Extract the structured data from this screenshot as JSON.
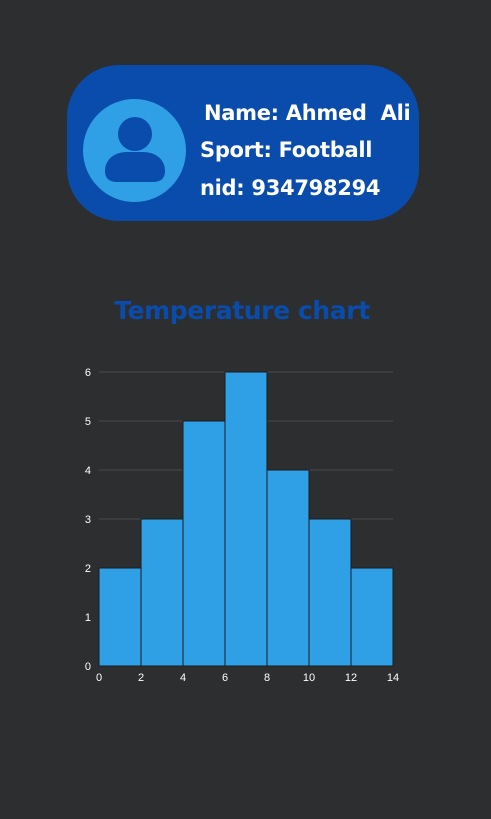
{
  "profile": {
    "name_line": "Name: Ahmed  Ali",
    "sport_line": "Sport: Football",
    "nid_line": "nid: 934798294",
    "avatar_icon": "user-silhouette-icon"
  },
  "colors": {
    "background": "#2d2e30",
    "card": "#0a4cab",
    "avatar_circle": "#2f9fe6",
    "avatar_figure": "#0a4cab",
    "bar_fill": "#2f9fe6",
    "bar_stroke": "#1b1c1e",
    "grid": "#4a4b4e",
    "title": "#0a4cab"
  },
  "chart_data": {
    "type": "bar",
    "title": "Temperature chart",
    "xlabel": "",
    "ylabel": "",
    "bins": [
      [
        0,
        2
      ],
      [
        2,
        4
      ],
      [
        4,
        6
      ],
      [
        6,
        8
      ],
      [
        8,
        10
      ],
      [
        10,
        12
      ],
      [
        12,
        14
      ]
    ],
    "values": [
      2,
      3,
      5,
      6,
      4,
      3,
      2
    ],
    "x_ticks": [
      0,
      2,
      4,
      6,
      8,
      10,
      12,
      14
    ],
    "y_ticks": [
      0,
      1,
      2,
      3,
      4,
      5,
      6
    ],
    "xlim": [
      0,
      14
    ],
    "ylim": [
      0,
      6
    ],
    "grid": "horizontal",
    "legend": "none"
  }
}
